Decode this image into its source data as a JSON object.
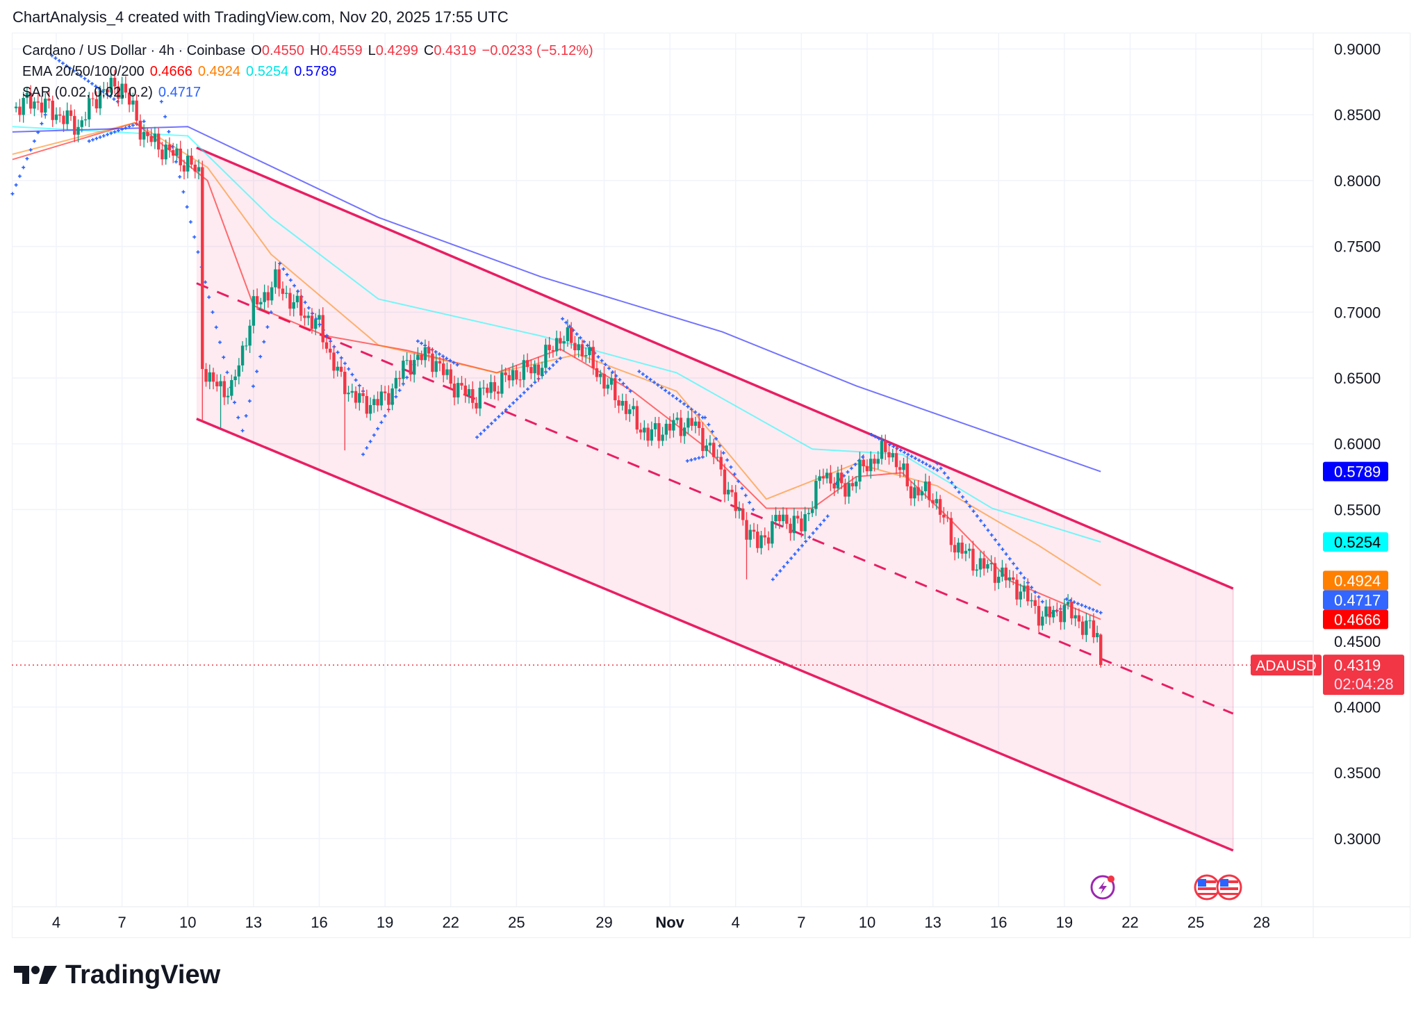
{
  "caption": "ChartAnalysis_4 created with TradingView.com, Nov 20, 2025 17:55 UTC",
  "legend": {
    "symbol": "Cardano / US Dollar · 4h · Coinbase",
    "o_label": "O",
    "o": "0.4550",
    "h_label": "H",
    "h": "0.4559",
    "l_label": "L",
    "l": "0.4299",
    "c_label": "C",
    "c": "0.4319",
    "change": "−0.0233 (−5.12%)",
    "ema_label": "EMA 20/50/100/200",
    "ema20": "0.4666",
    "ema50": "0.4924",
    "ema100": "0.5254",
    "ema200": "0.5789",
    "sar_label": "SAR (0.02, 0.02, 0.2)",
    "sar": "0.4717"
  },
  "logo_text": "TradingView",
  "chart_data": {
    "type": "candlestick",
    "symbol": "ADAUSD",
    "interval": "4h",
    "ylim": [
      0.27,
      0.915
    ],
    "yticks": [
      "0.9000",
      "0.8500",
      "0.8000",
      "0.7500",
      "0.7000",
      "0.6500",
      "0.6000",
      "0.5500",
      "0.4500",
      "0.4000",
      "0.3500",
      "0.3000"
    ],
    "xlim_days": [
      2,
      61
    ],
    "xticks": [
      {
        "label": "4",
        "day": 4
      },
      {
        "label": "7",
        "day": 7
      },
      {
        "label": "10",
        "day": 10
      },
      {
        "label": "13",
        "day": 13
      },
      {
        "label": "16",
        "day": 16
      },
      {
        "label": "19",
        "day": 19
      },
      {
        "label": "22",
        "day": 22
      },
      {
        "label": "25",
        "day": 25
      },
      {
        "label": "29",
        "day": 29
      },
      {
        "label": "Nov",
        "day": 32
      },
      {
        "label": "4",
        "day": 35
      },
      {
        "label": "7",
        "day": 38
      },
      {
        "label": "10",
        "day": 41
      },
      {
        "label": "13",
        "day": 44
      },
      {
        "label": "16",
        "day": 47
      },
      {
        "label": "19",
        "day": 50
      },
      {
        "label": "22",
        "day": 53
      },
      {
        "label": "25",
        "day": 56
      },
      {
        "label": "28",
        "day": 59
      }
    ],
    "day_axis_note": "day 1 = Oct 1, day 32 = Nov 1",
    "price_path": [
      [
        2,
        0.855
      ],
      [
        3,
        0.861
      ],
      [
        4,
        0.851
      ],
      [
        5,
        0.841
      ],
      [
        6,
        0.868
      ],
      [
        7,
        0.872
      ],
      [
        8,
        0.834
      ],
      [
        9,
        0.823
      ],
      [
        10,
        0.813
      ],
      [
        10.5,
        0.805
      ],
      [
        10.67,
        0.66
      ],
      [
        11,
        0.647
      ],
      [
        12,
        0.64
      ],
      [
        13,
        0.703
      ],
      [
        14,
        0.723
      ],
      [
        15,
        0.703
      ],
      [
        16,
        0.689
      ],
      [
        17,
        0.647
      ],
      [
        18,
        0.63
      ],
      [
        19,
        0.634
      ],
      [
        20,
        0.661
      ],
      [
        21,
        0.668
      ],
      [
        22,
        0.647
      ],
      [
        23,
        0.634
      ],
      [
        24,
        0.644
      ],
      [
        25,
        0.654
      ],
      [
        26,
        0.658
      ],
      [
        27,
        0.682
      ],
      [
        28,
        0.672
      ],
      [
        29,
        0.647
      ],
      [
        30,
        0.627
      ],
      [
        31,
        0.606
      ],
      [
        32,
        0.613
      ],
      [
        33,
        0.616
      ],
      [
        34,
        0.592
      ],
      [
        35,
        0.551
      ],
      [
        36,
        0.523
      ],
      [
        37,
        0.544
      ],
      [
        38,
        0.537
      ],
      [
        39,
        0.578
      ],
      [
        40,
        0.565
      ],
      [
        41,
        0.585
      ],
      [
        42,
        0.596
      ],
      [
        43,
        0.565
      ],
      [
        44,
        0.561
      ],
      [
        45,
        0.523
      ],
      [
        46,
        0.509
      ],
      [
        47,
        0.502
      ],
      [
        48,
        0.489
      ],
      [
        49,
        0.468
      ],
      [
        50,
        0.475
      ],
      [
        51,
        0.461
      ],
      [
        51.5,
        0.455
      ]
    ],
    "extra_lows": [
      [
        10.67,
        0.617
      ],
      [
        17.2,
        0.595
      ],
      [
        35.5,
        0.497
      ],
      [
        11.5,
        0.612
      ]
    ],
    "last_candle": {
      "day": 51.66,
      "o": 0.455,
      "h": 0.4559,
      "l": 0.4299,
      "c": 0.4319
    },
    "ema": [
      {
        "name": "EMA 20",
        "color": "#ff0000",
        "last": 0.4666,
        "points": [
          [
            2,
            0.816
          ],
          [
            7.6,
            0.844
          ],
          [
            10.9,
            0.8
          ],
          [
            13,
            0.705
          ],
          [
            16.3,
            0.682
          ],
          [
            20,
            0.671
          ],
          [
            24.1,
            0.654
          ],
          [
            27,
            0.672
          ],
          [
            30.3,
            0.64
          ],
          [
            33.5,
            0.599
          ],
          [
            36.4,
            0.551
          ],
          [
            38.5,
            0.551
          ],
          [
            40.5,
            0.575
          ],
          [
            42.6,
            0.578
          ],
          [
            44.7,
            0.544
          ],
          [
            47.5,
            0.496
          ],
          [
            51.66,
            0.4666
          ]
        ]
      },
      {
        "name": "EMA 50",
        "color": "#ff7f00",
        "last": 0.4924,
        "points": [
          [
            2,
            0.82
          ],
          [
            7.6,
            0.844
          ],
          [
            10.9,
            0.81
          ],
          [
            13.8,
            0.744
          ],
          [
            18.7,
            0.675
          ],
          [
            24.1,
            0.654
          ],
          [
            27.8,
            0.668
          ],
          [
            32.3,
            0.64
          ],
          [
            36.4,
            0.558
          ],
          [
            40.5,
            0.585
          ],
          [
            44.2,
            0.568
          ],
          [
            48.8,
            0.523
          ],
          [
            51.66,
            0.4924
          ]
        ]
      },
      {
        "name": "EMA 100",
        "color": "#00ffff",
        "last": 0.5254,
        "points": [
          [
            2,
            0.841
          ],
          [
            10,
            0.834
          ],
          [
            13.8,
            0.772
          ],
          [
            18.7,
            0.71
          ],
          [
            26.1,
            0.682
          ],
          [
            32.3,
            0.654
          ],
          [
            38.5,
            0.596
          ],
          [
            42.6,
            0.592
          ],
          [
            46.7,
            0.551
          ],
          [
            51.66,
            0.5254
          ]
        ]
      },
      {
        "name": "EMA 200",
        "color": "#0000ff",
        "last": 0.5789,
        "points": [
          [
            2,
            0.837
          ],
          [
            10,
            0.841
          ],
          [
            18.7,
            0.772
          ],
          [
            26.1,
            0.727
          ],
          [
            34.4,
            0.685
          ],
          [
            40.5,
            0.644
          ],
          [
            51.66,
            0.5789
          ]
        ]
      }
    ],
    "sar": {
      "color": "#2962ff",
      "last": 0.4717,
      "segments": [
        [
          2,
          0.79,
          3.5,
          0.85
        ],
        [
          3.8,
          0.895,
          6.8,
          0.86
        ],
        [
          5.5,
          0.83,
          8,
          0.845
        ],
        [
          8.8,
          0.86,
          12.3,
          0.62
        ],
        [
          12.5,
          0.61,
          13.8,
          0.7
        ],
        [
          14.2,
          0.737,
          18,
          0.64
        ],
        [
          18,
          0.592,
          20.5,
          0.665
        ],
        [
          20.5,
          0.678,
          22.3,
          0.66
        ],
        [
          23.2,
          0.605,
          27,
          0.665
        ],
        [
          27.1,
          0.695,
          30.2,
          0.64
        ],
        [
          30.6,
          0.655,
          33.5,
          0.62
        ],
        [
          32.8,
          0.587,
          33.5,
          0.59
        ],
        [
          33.6,
          0.62,
          35.8,
          0.55
        ],
        [
          36.7,
          0.497,
          39.2,
          0.545
        ],
        [
          39.6,
          0.57,
          40.8,
          0.59
        ],
        [
          41.2,
          0.607,
          44.2,
          0.58
        ],
        [
          44.2,
          0.585,
          49,
          0.48
        ],
        [
          49.3,
          0.47,
          50,
          0.476
        ],
        [
          50.1,
          0.482,
          51.66,
          0.4717
        ]
      ]
    },
    "channel": {
      "color": "#e91e63",
      "upper": [
        [
          10.4,
          0.825
        ],
        [
          57.7,
          0.49
        ]
      ],
      "middle": [
        [
          10.4,
          0.722
        ],
        [
          57.7,
          0.395
        ]
      ],
      "lower": [
        [
          10.4,
          0.619
        ],
        [
          57.7,
          0.291
        ]
      ]
    },
    "price_line": {
      "symbol_label": "ADAUSD",
      "price": "0.4319",
      "countdown": "02:04:28",
      "value": 0.4319
    },
    "axis_labels": [
      {
        "text": "0.5789",
        "value": 0.5789,
        "bg": "#0000ff",
        "fg": "#ffffff"
      },
      {
        "text": "0.5254",
        "value": 0.5254,
        "bg": "#00ffff",
        "fg": "#000000"
      },
      {
        "text": "0.4924",
        "value": 0.4924,
        "bg": "#ff7f00",
        "fg": "#ffffff"
      },
      {
        "text": "0.4717",
        "value": 0.4717,
        "bg": "#3366ff",
        "fg": "#ffffff"
      },
      {
        "text": "0.4666",
        "value": 0.4666,
        "bg": "#ff0000",
        "fg": "#ffffff"
      }
    ],
    "colors": {
      "up": "#089981",
      "down": "#f23645",
      "grid": "#f0f3fa"
    }
  }
}
